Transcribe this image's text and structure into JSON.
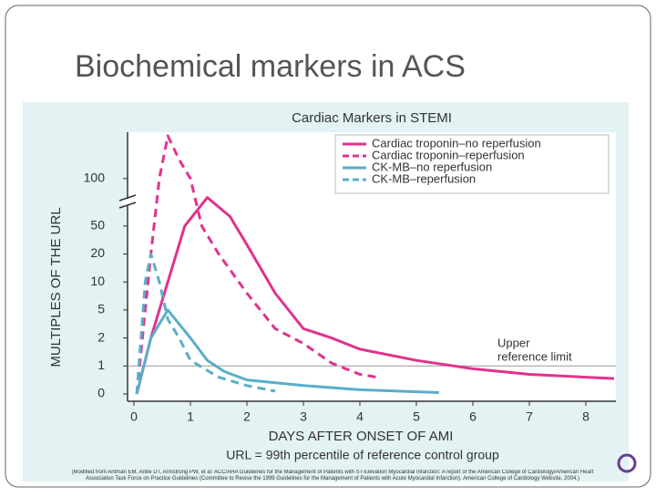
{
  "slide_title": "Biochemical markers in ACS",
  "chart_data": {
    "type": "line",
    "title": "Cardiac Markers in STEMI",
    "x_label": "DAYS AFTER ONSET OF AMI",
    "y_label": "MULTIPLES OF THE URL",
    "xlim": [
      0,
      8.5
    ],
    "xticks": [
      0,
      1,
      2,
      3,
      4,
      5,
      6,
      7,
      8
    ],
    "yticks": [
      0,
      1,
      2,
      5,
      10,
      20,
      50,
      100
    ],
    "reference_line": {
      "value": 1,
      "label": [
        "Upper",
        "reference limit"
      ]
    },
    "footnote": "URL = 99th percentile of reference control group",
    "source": "(Modified from Antman EM, Anbe DT, Armstrong PW, et al: ACC/AHA Guidelines for the Management of Patients with ST-Elevation Myocardial Infarction: A report of the American College of Cardiology/American Heart Association Task Force on Practice Guidelines (Committee to Revise the 1999 Guidelines for the Management of Patients with Acute Myocardial Infarction). American College of Cardiology Website, 2004.)",
    "series": [
      {
        "name": "Cardiac troponin–no reperfusion",
        "color": "#e0338e",
        "style": "solid",
        "x": [
          0.05,
          0.3,
          0.6,
          0.9,
          1.3,
          1.7,
          2,
          2.5,
          3,
          3.5,
          4,
          5,
          6,
          7,
          8,
          8.5
        ],
        "values": [
          0,
          2,
          10,
          50,
          80,
          60,
          30,
          8,
          3,
          2,
          1.6,
          1.2,
          0.9,
          0.7,
          0.6,
          0.55
        ]
      },
      {
        "name": "Cardiac troponin–reperfusion",
        "color": "#e0338e",
        "style": "dashed",
        "x": [
          0.05,
          0.3,
          0.45,
          0.6,
          0.8,
          1,
          1.2,
          1.5,
          2,
          2.5,
          3,
          3.5,
          4,
          4.3
        ],
        "values": [
          0,
          20,
          100,
          145,
          120,
          100,
          50,
          20,
          8,
          3,
          1.8,
          1.1,
          0.7,
          0.6
        ]
      },
      {
        "name": "CK-MB–no reperfusion",
        "color": "#5aaec9",
        "style": "solid",
        "x": [
          0.05,
          0.3,
          0.6,
          0.8,
          1,
          1.3,
          1.6,
          2,
          3,
          4,
          5.4
        ],
        "values": [
          0,
          2,
          5,
          3.5,
          2,
          1.2,
          0.8,
          0.5,
          0.3,
          0.15,
          0.05
        ]
      },
      {
        "name": "CK-MB–reperfusion",
        "color": "#5aaec9",
        "style": "dashed",
        "x": [
          0.05,
          0.2,
          0.3,
          0.45,
          0.6,
          0.8,
          1,
          1.5,
          2,
          2.5
        ],
        "values": [
          0,
          10,
          20,
          10,
          4,
          2,
          1.2,
          0.6,
          0.3,
          0.1
        ]
      }
    ]
  }
}
